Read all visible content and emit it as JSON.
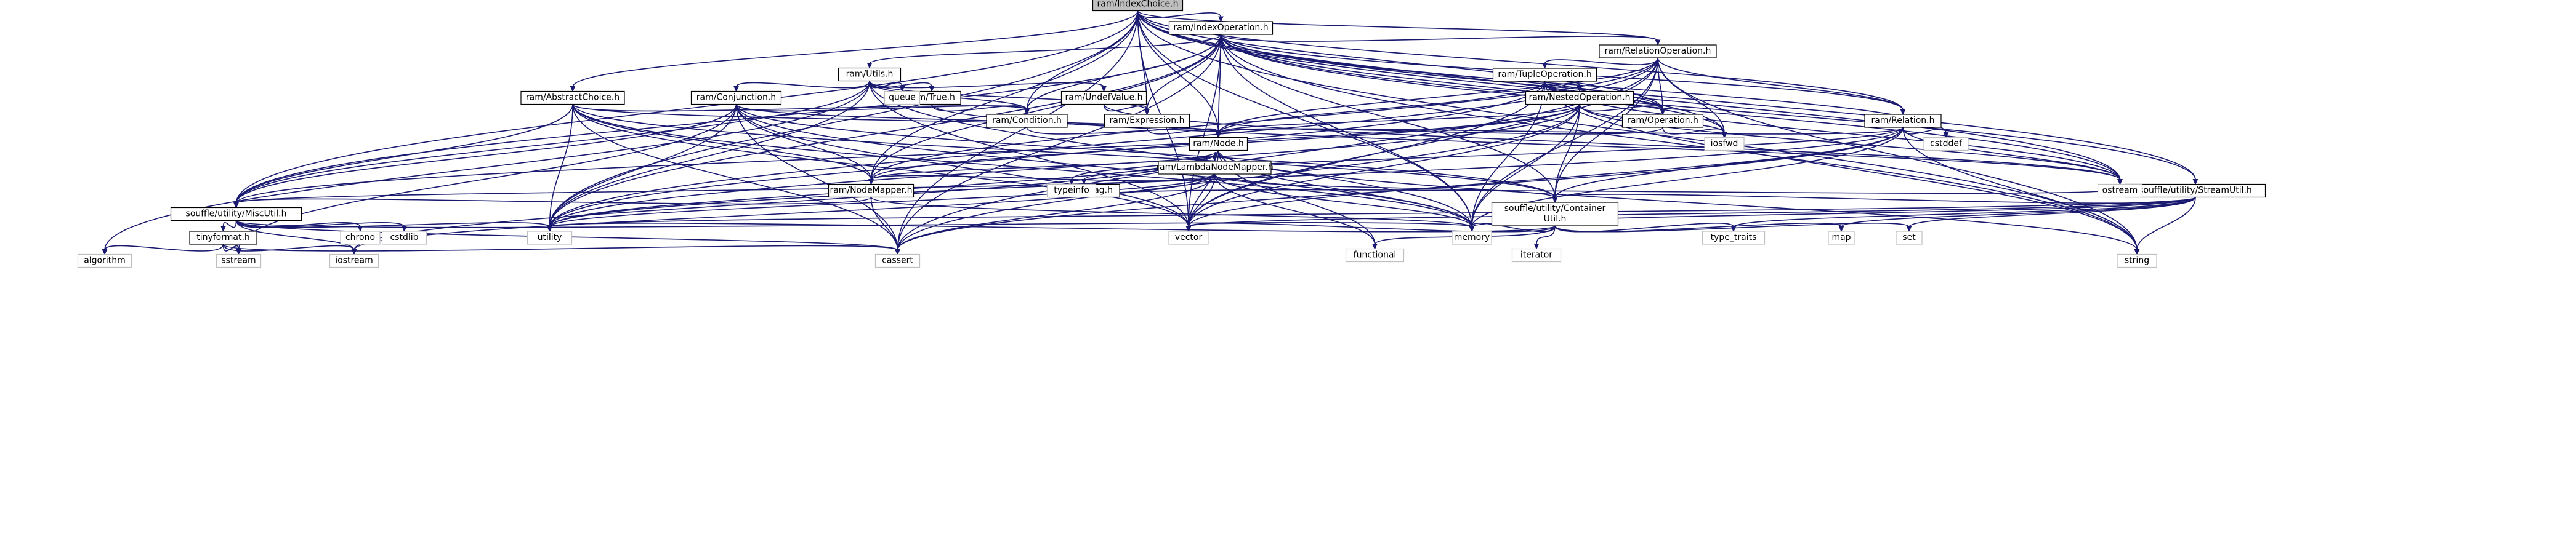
{
  "graph": {
    "root": "ram/IndexChoice.h",
    "nodes": [
      {
        "id": "ram/IndexChoice.h",
        "lines": [
          "ram/IndexChoice.h"
        ],
        "root": true
      },
      {
        "id": "ram/IndexOperation.h",
        "lines": [
          "ram/IndexOperation.h"
        ]
      },
      {
        "id": "ram/RelationOperation.h",
        "lines": [
          "ram/RelationOperation.h"
        ]
      },
      {
        "id": "ram/Utils.h",
        "lines": [
          "ram/Utils.h"
        ]
      },
      {
        "id": "ram/TupleOperation.h",
        "lines": [
          "ram/TupleOperation.h"
        ]
      },
      {
        "id": "ram/NestedOperation.h",
        "lines": [
          "ram/NestedOperation.h"
        ]
      },
      {
        "id": "ram/AbstractChoice.h",
        "lines": [
          "ram/AbstractChoice.h"
        ]
      },
      {
        "id": "ram/Conjunction.h",
        "lines": [
          "ram/Conjunction.h"
        ]
      },
      {
        "id": "ram/True.h",
        "lines": [
          "ram/True.h"
        ]
      },
      {
        "id": "ram/UndefValue.h",
        "lines": [
          "ram/UndefValue.h"
        ]
      },
      {
        "id": "ram/Condition.h",
        "lines": [
          "ram/Condition.h"
        ]
      },
      {
        "id": "ram/Expression.h",
        "lines": [
          "ram/Expression.h"
        ]
      },
      {
        "id": "ram/Operation.h",
        "lines": [
          "ram/Operation.h"
        ]
      },
      {
        "id": "ram/Relation.h",
        "lines": [
          "ram/Relation.h"
        ]
      },
      {
        "id": "ram/Node.h",
        "lines": [
          "ram/Node.h"
        ]
      },
      {
        "id": "ram/LambdaNodeMapper.h",
        "lines": [
          "ram/LambdaNodeMapper.h"
        ]
      },
      {
        "id": "ram/NodeMapper.h",
        "lines": [
          "ram/NodeMapper.h"
        ]
      },
      {
        "id": "RelationTag.h",
        "lines": [
          "RelationTag.h"
        ]
      },
      {
        "id": "souffle/utility/MiscUtil.h",
        "lines": [
          "souffle/utility/MiscUtil.h"
        ]
      },
      {
        "id": "souffle/utility/ContainerUtil.h",
        "lines": [
          "souffle/utility/Container",
          "Util.h"
        ]
      },
      {
        "id": "souffle/utility/StreamUtil.h",
        "lines": [
          "souffle/utility/StreamUtil.h"
        ]
      },
      {
        "id": "tinyformat.h",
        "lines": [
          "tinyformat.h"
        ]
      },
      {
        "id": "queue",
        "lines": [
          "queue"
        ],
        "external": true
      },
      {
        "id": "iosfwd",
        "lines": [
          "iosfwd"
        ],
        "external": true
      },
      {
        "id": "cstddef",
        "lines": [
          "cstddef"
        ],
        "external": true
      },
      {
        "id": "typeinfo",
        "lines": [
          "typeinfo"
        ],
        "external": true
      },
      {
        "id": "ostream",
        "lines": [
          "ostream"
        ],
        "external": true
      },
      {
        "id": "chrono",
        "lines": [
          "chrono"
        ],
        "external": true
      },
      {
        "id": "cstdlib",
        "lines": [
          "cstdlib"
        ],
        "external": true
      },
      {
        "id": "utility",
        "lines": [
          "utility"
        ],
        "external": true
      },
      {
        "id": "vector",
        "lines": [
          "vector"
        ],
        "external": true
      },
      {
        "id": "memory",
        "lines": [
          "memory"
        ],
        "external": true
      },
      {
        "id": "functional",
        "lines": [
          "functional"
        ],
        "external": true
      },
      {
        "id": "iterator",
        "lines": [
          "iterator"
        ],
        "external": true
      },
      {
        "id": "type_traits",
        "lines": [
          "type_traits"
        ],
        "external": true
      },
      {
        "id": "map",
        "lines": [
          "map"
        ],
        "external": true
      },
      {
        "id": "set",
        "lines": [
          "set"
        ],
        "external": true
      },
      {
        "id": "algorithm",
        "lines": [
          "algorithm"
        ],
        "external": true
      },
      {
        "id": "sstream",
        "lines": [
          "sstream"
        ],
        "external": true
      },
      {
        "id": "iostream",
        "lines": [
          "iostream"
        ],
        "external": true
      },
      {
        "id": "cassert",
        "lines": [
          "cassert"
        ],
        "external": true
      },
      {
        "id": "string",
        "lines": [
          "string"
        ],
        "external": true
      }
    ],
    "edges": [
      [
        "ram/IndexChoice.h",
        "ram/IndexOperation.h"
      ],
      [
        "ram/IndexChoice.h",
        "ram/RelationOperation.h"
      ],
      [
        "ram/IndexChoice.h",
        "ram/AbstractChoice.h"
      ],
      [
        "ram/IndexChoice.h",
        "ram/Condition.h"
      ],
      [
        "ram/IndexChoice.h",
        "ram/Expression.h"
      ],
      [
        "ram/IndexChoice.h",
        "ram/Node.h"
      ],
      [
        "ram/IndexChoice.h",
        "ram/NodeMapper.h"
      ],
      [
        "ram/IndexChoice.h",
        "ram/Operation.h"
      ],
      [
        "ram/IndexChoice.h",
        "ram/Relation.h"
      ],
      [
        "ram/IndexChoice.h",
        "souffle/utility/MiscUtil.h"
      ],
      [
        "ram/IndexChoice.h",
        "souffle/utility/StreamUtil.h"
      ],
      [
        "ram/IndexChoice.h",
        "iosfwd"
      ],
      [
        "ram/IndexChoice.h",
        "memory"
      ],
      [
        "ram/IndexChoice.h",
        "ostream"
      ],
      [
        "ram/IndexChoice.h",
        "string"
      ],
      [
        "ram/IndexChoice.h",
        "utility"
      ],
      [
        "ram/IndexChoice.h",
        "vector"
      ],
      [
        "ram/IndexChoice.h",
        "cassert"
      ],
      [
        "ram/IndexOperation.h",
        "ram/RelationOperation.h"
      ],
      [
        "ram/IndexOperation.h",
        "ram/Utils.h"
      ],
      [
        "ram/IndexOperation.h",
        "ram/Condition.h"
      ],
      [
        "ram/IndexOperation.h",
        "ram/Expression.h"
      ],
      [
        "ram/IndexOperation.h",
        "ram/Node.h"
      ],
      [
        "ram/IndexOperation.h",
        "ram/NodeMapper.h"
      ],
      [
        "ram/IndexOperation.h",
        "ram/Operation.h"
      ],
      [
        "ram/IndexOperation.h",
        "ram/Relation.h"
      ],
      [
        "ram/IndexOperation.h",
        "souffle/utility/ContainerUtil.h"
      ],
      [
        "ram/IndexOperation.h",
        "souffle/utility/MiscUtil.h"
      ],
      [
        "ram/IndexOperation.h",
        "souffle/utility/StreamUtil.h"
      ],
      [
        "ram/IndexOperation.h",
        "cassert"
      ],
      [
        "ram/IndexOperation.h",
        "cstddef"
      ],
      [
        "ram/IndexOperation.h",
        "iosfwd"
      ],
      [
        "ram/IndexOperation.h",
        "memory"
      ],
      [
        "ram/IndexOperation.h",
        "ostream"
      ],
      [
        "ram/IndexOperation.h",
        "string"
      ],
      [
        "ram/IndexOperation.h",
        "utility"
      ],
      [
        "ram/IndexOperation.h",
        "vector"
      ],
      [
        "ram/RelationOperation.h",
        "ram/TupleOperation.h"
      ],
      [
        "ram/RelationOperation.h",
        "ram/Node.h"
      ],
      [
        "ram/RelationOperation.h",
        "ram/NodeMapper.h"
      ],
      [
        "ram/RelationOperation.h",
        "ram/Operation.h"
      ],
      [
        "ram/RelationOperation.h",
        "ram/Relation.h"
      ],
      [
        "ram/RelationOperation.h",
        "souffle/utility/ContainerUtil.h"
      ],
      [
        "ram/RelationOperation.h",
        "cassert"
      ],
      [
        "ram/RelationOperation.h",
        "iosfwd"
      ],
      [
        "ram/RelationOperation.h",
        "memory"
      ],
      [
        "ram/RelationOperation.h",
        "string"
      ],
      [
        "ram/RelationOperation.h",
        "utility"
      ],
      [
        "ram/RelationOperation.h",
        "vector"
      ],
      [
        "ram/TupleOperation.h",
        "ram/NestedOperation.h"
      ],
      [
        "ram/TupleOperation.h",
        "ram/Node.h"
      ],
      [
        "ram/TupleOperation.h",
        "ram/Operation.h"
      ],
      [
        "ram/TupleOperation.h",
        "memory"
      ],
      [
        "ram/TupleOperation.h",
        "ostream"
      ],
      [
        "ram/TupleOperation.h",
        "string"
      ],
      [
        "ram/TupleOperation.h",
        "utility"
      ],
      [
        "ram/TupleOperation.h",
        "vector"
      ],
      [
        "ram/NestedOperation.h",
        "ram/Node.h"
      ],
      [
        "ram/NestedOperation.h",
        "ram/NodeMapper.h"
      ],
      [
        "ram/NestedOperation.h",
        "ram/Operation.h"
      ],
      [
        "ram/NestedOperation.h",
        "souffle/utility/ContainerUtil.h"
      ],
      [
        "ram/NestedOperation.h",
        "souffle/utility/MiscUtil.h"
      ],
      [
        "ram/NestedOperation.h",
        "cassert"
      ],
      [
        "ram/NestedOperation.h",
        "iosfwd"
      ],
      [
        "ram/NestedOperation.h",
        "memory"
      ],
      [
        "ram/NestedOperation.h",
        "ostream"
      ],
      [
        "ram/NestedOperation.h",
        "utility"
      ],
      [
        "ram/NestedOperation.h",
        "vector"
      ],
      [
        "ram/Utils.h",
        "ram/Conjunction.h"
      ],
      [
        "ram/Utils.h",
        "ram/True.h"
      ],
      [
        "ram/Utils.h",
        "ram/UndefValue.h"
      ],
      [
        "ram/Utils.h",
        "ram/Condition.h"
      ],
      [
        "ram/Utils.h",
        "ram/Expression.h"
      ],
      [
        "ram/Utils.h",
        "souffle/utility/MiscUtil.h"
      ],
      [
        "ram/Utils.h",
        "algorithm"
      ],
      [
        "ram/Utils.h",
        "memory"
      ],
      [
        "ram/Utils.h",
        "queue"
      ],
      [
        "ram/Utils.h",
        "utility"
      ],
      [
        "ram/Utils.h",
        "vector"
      ],
      [
        "ram/AbstractChoice.h",
        "ram/Condition.h"
      ],
      [
        "ram/AbstractChoice.h",
        "ram/Node.h"
      ],
      [
        "ram/AbstractChoice.h",
        "ram/NodeMapper.h"
      ],
      [
        "ram/AbstractChoice.h",
        "souffle/utility/ContainerUtil.h"
      ],
      [
        "ram/AbstractChoice.h",
        "souffle/utility/MiscUtil.h"
      ],
      [
        "ram/AbstractChoice.h",
        "cassert"
      ],
      [
        "ram/AbstractChoice.h",
        "memory"
      ],
      [
        "ram/AbstractChoice.h",
        "utility"
      ],
      [
        "ram/AbstractChoice.h",
        "vector"
      ],
      [
        "ram/Conjunction.h",
        "ram/Condition.h"
      ],
      [
        "ram/Conjunction.h",
        "ram/Node.h"
      ],
      [
        "ram/Conjunction.h",
        "ram/NodeMapper.h"
      ],
      [
        "ram/Conjunction.h",
        "souffle/utility/ContainerUtil.h"
      ],
      [
        "ram/Conjunction.h",
        "souffle/utility/MiscUtil.h"
      ],
      [
        "ram/Conjunction.h",
        "cassert"
      ],
      [
        "ram/Conjunction.h",
        "memory"
      ],
      [
        "ram/Conjunction.h",
        "sstream"
      ],
      [
        "ram/Conjunction.h",
        "utility"
      ],
      [
        "ram/Conjunction.h",
        "vector"
      ],
      [
        "ram/True.h",
        "ram/Condition.h"
      ],
      [
        "ram/True.h",
        "ostream"
      ],
      [
        "ram/UndefValue.h",
        "ram/Expression.h"
      ],
      [
        "ram/UndefValue.h",
        "ostream"
      ],
      [
        "ram/Condition.h",
        "ram/Node.h"
      ],
      [
        "ram/Expression.h",
        "ram/Node.h"
      ],
      [
        "ram/Operation.h",
        "ram/Node.h"
      ],
      [
        "ram/Operation.h",
        "iosfwd"
      ],
      [
        "ram/Relation.h",
        "ram/Node.h"
      ],
      [
        "ram/Relation.h",
        "RelationTag.h"
      ],
      [
        "ram/Relation.h",
        "souffle/utility/ContainerUtil.h"
      ],
      [
        "ram/Relation.h",
        "cassert"
      ],
      [
        "ram/Relation.h",
        "cstddef"
      ],
      [
        "ram/Relation.h",
        "memory"
      ],
      [
        "ram/Relation.h",
        "ostream"
      ],
      [
        "ram/Relation.h",
        "string"
      ],
      [
        "ram/Relation.h",
        "utility"
      ],
      [
        "ram/Relation.h",
        "vector"
      ],
      [
        "ram/Node.h",
        "ram/LambdaNodeMapper.h"
      ],
      [
        "ram/Node.h",
        "ram/NodeMapper.h"
      ],
      [
        "ram/Node.h",
        "functional"
      ],
      [
        "ram/Node.h",
        "iostream"
      ],
      [
        "ram/Node.h",
        "memory"
      ],
      [
        "ram/Node.h",
        "string"
      ],
      [
        "ram/Node.h",
        "typeinfo"
      ],
      [
        "ram/Node.h",
        "utility"
      ],
      [
        "ram/Node.h",
        "vector"
      ],
      [
        "ram/LambdaNodeMapper.h",
        "ram/NodeMapper.h"
      ],
      [
        "ram/LambdaNodeMapper.h",
        "souffle/utility/ContainerUtil.h"
      ],
      [
        "ram/LambdaNodeMapper.h",
        "souffle/utility/MiscUtil.h"
      ],
      [
        "ram/LambdaNodeMapper.h",
        "cassert"
      ],
      [
        "ram/LambdaNodeMapper.h",
        "functional"
      ],
      [
        "ram/LambdaNodeMapper.h",
        "iostream"
      ],
      [
        "ram/LambdaNodeMapper.h",
        "memory"
      ],
      [
        "ram/LambdaNodeMapper.h",
        "utility"
      ],
      [
        "ram/LambdaNodeMapper.h",
        "vector"
      ],
      [
        "ram/NodeMapper.h",
        "souffle/utility/MiscUtil.h"
      ],
      [
        "ram/NodeMapper.h",
        "cassert"
      ],
      [
        "ram/NodeMapper.h",
        "memory"
      ],
      [
        "RelationTag.h",
        "ostream"
      ],
      [
        "souffle/utility/MiscUtil.h",
        "tinyformat.h"
      ],
      [
        "souffle/utility/MiscUtil.h",
        "cassert"
      ],
      [
        "souffle/utility/MiscUtil.h",
        "chrono"
      ],
      [
        "souffle/utility/MiscUtil.h",
        "cstdlib"
      ],
      [
        "souffle/utility/MiscUtil.h",
        "iostream"
      ],
      [
        "souffle/utility/MiscUtil.h",
        "memory"
      ],
      [
        "souffle/utility/MiscUtil.h",
        "utility"
      ],
      [
        "tinyformat.h",
        "algorithm"
      ],
      [
        "tinyformat.h",
        "cassert"
      ],
      [
        "tinyformat.h",
        "iostream"
      ],
      [
        "tinyformat.h",
        "sstream"
      ],
      [
        "souffle/utility/ContainerUtil.h",
        "functional"
      ],
      [
        "souffle/utility/ContainerUtil.h",
        "iterator"
      ],
      [
        "souffle/utility/ContainerUtil.h",
        "map"
      ],
      [
        "souffle/utility/ContainerUtil.h",
        "memory"
      ],
      [
        "souffle/utility/ContainerUtil.h",
        "set"
      ],
      [
        "souffle/utility/ContainerUtil.h",
        "type_traits"
      ],
      [
        "souffle/utility/ContainerUtil.h",
        "utility"
      ],
      [
        "souffle/utility/ContainerUtil.h",
        "vector"
      ],
      [
        "souffle/utility/StreamUtil.h",
        "souffle/utility/ContainerUtil.h"
      ],
      [
        "souffle/utility/StreamUtil.h",
        "map"
      ],
      [
        "souffle/utility/StreamUtil.h",
        "memory"
      ],
      [
        "souffle/utility/StreamUtil.h",
        "ostream"
      ],
      [
        "souffle/utility/StreamUtil.h",
        "set"
      ],
      [
        "souffle/utility/StreamUtil.h",
        "string"
      ],
      [
        "souffle/utility/StreamUtil.h",
        "type_traits"
      ],
      [
        "souffle/utility/StreamUtil.h",
        "utility"
      ],
      [
        "souffle/utility/StreamUtil.h",
        "vector"
      ]
    ]
  }
}
